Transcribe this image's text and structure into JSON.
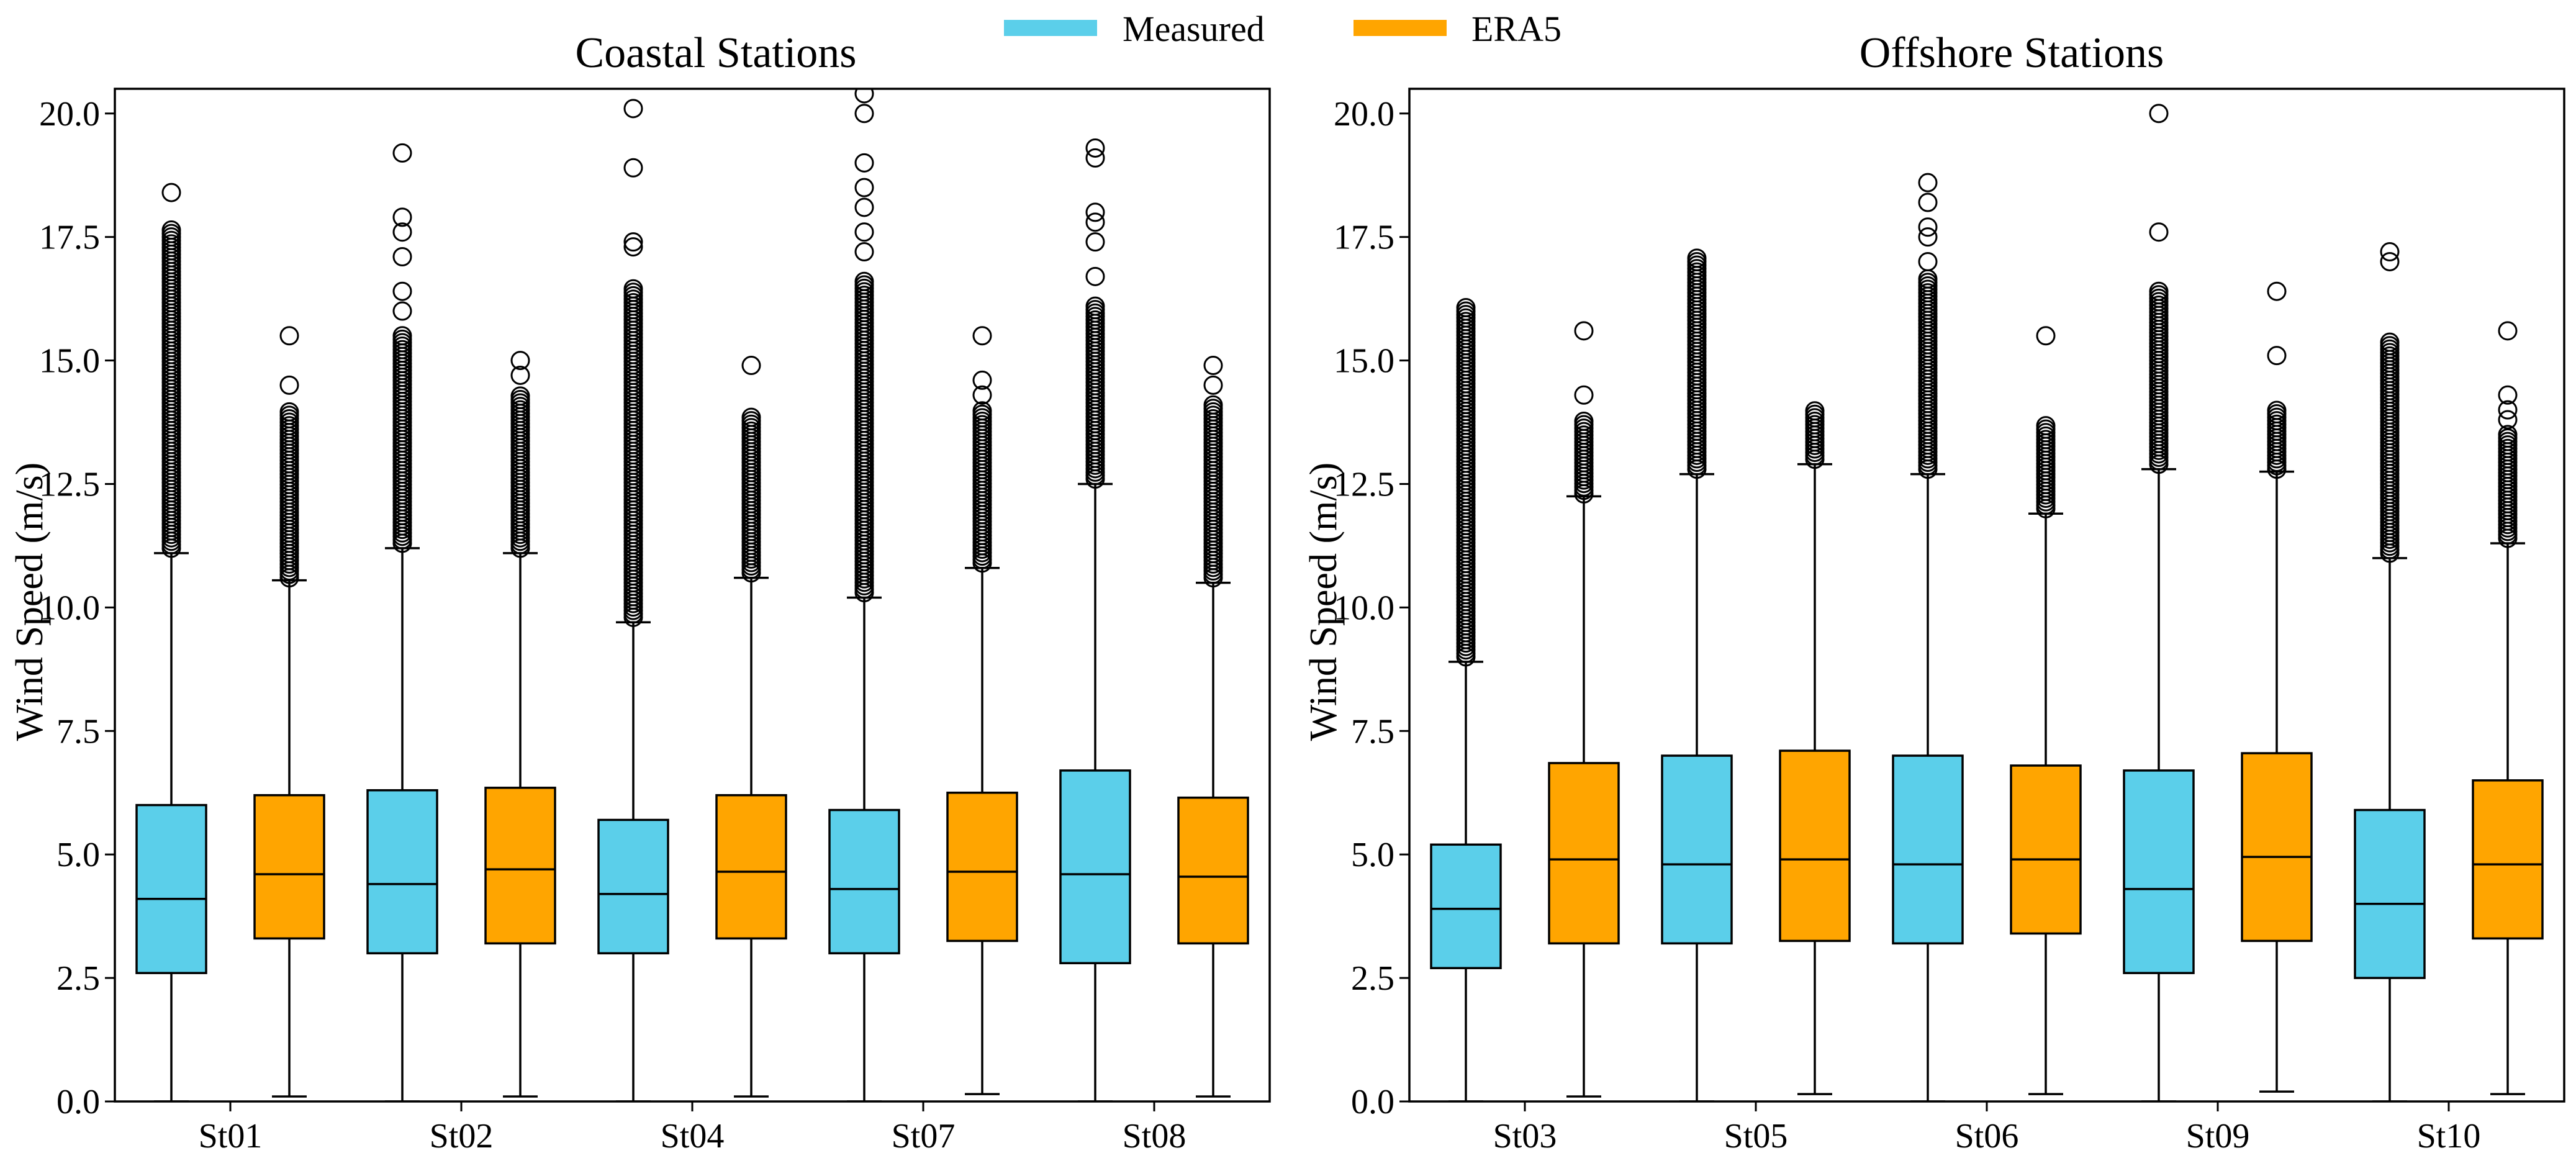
{
  "legend": {
    "items": [
      {
        "label": "Measured",
        "color": "#5BCFEA"
      },
      {
        "label": "ERA5",
        "color": "#FFA500"
      }
    ]
  },
  "chart_data": [
    {
      "type": "boxplot",
      "title": "Coastal Stations",
      "xlabel": "",
      "ylabel": "Wind Speed (m/s)",
      "ylim": [
        0,
        20.5
      ],
      "yticks": [
        "0.0",
        "2.5",
        "5.0",
        "7.5",
        "10.0",
        "12.5",
        "15.0",
        "17.5",
        "20.0"
      ],
      "categories": [
        "St01",
        "St02",
        "St04",
        "St07",
        "St08"
      ],
      "series": [
        {
          "name": "Measured",
          "color": "#5BCFEA",
          "boxes": [
            {
              "whislo": 0.0,
              "q1": 2.6,
              "med": 4.1,
              "q3": 6.0,
              "whishi": 11.1,
              "fliers_from": 11.2,
              "fliers_to": 17.7,
              "outliers": [
                18.4
              ]
            },
            {
              "whislo": 0.0,
              "q1": 3.0,
              "med": 4.4,
              "q3": 6.3,
              "whishi": 11.2,
              "fliers_from": 11.3,
              "fliers_to": 15.5,
              "outliers": [
                16.0,
                16.4,
                17.1,
                17.6,
                17.9,
                19.2
              ]
            },
            {
              "whislo": 0.0,
              "q1": 3.0,
              "med": 4.2,
              "q3": 5.7,
              "whishi": 9.7,
              "fliers_from": 9.8,
              "fliers_to": 16.5,
              "outliers": [
                17.3,
                17.4,
                18.9,
                20.1
              ]
            },
            {
              "whislo": 0.0,
              "q1": 3.0,
              "med": 4.3,
              "q3": 5.9,
              "whishi": 10.2,
              "fliers_from": 10.3,
              "fliers_to": 16.6,
              "outliers": [
                17.2,
                17.6,
                18.1,
                18.5,
                19.0,
                20.0,
                20.4
              ]
            },
            {
              "whislo": 0.0,
              "q1": 2.8,
              "med": 4.6,
              "q3": 6.7,
              "whishi": 12.5,
              "fliers_from": 12.6,
              "fliers_to": 16.1,
              "outliers": [
                16.7,
                17.4,
                17.8,
                18.0,
                19.1,
                19.3
              ]
            }
          ]
        },
        {
          "name": "ERA5",
          "color": "#FFA500",
          "boxes": [
            {
              "whislo": 0.1,
              "q1": 3.3,
              "med": 4.6,
              "q3": 6.2,
              "whishi": 10.55,
              "fliers_from": 10.6,
              "fliers_to": 14.0,
              "outliers": [
                14.5,
                15.5
              ]
            },
            {
              "whislo": 0.1,
              "q1": 3.2,
              "med": 4.7,
              "q3": 6.35,
              "whishi": 11.1,
              "fliers_from": 11.2,
              "fliers_to": 14.3,
              "outliers": [
                14.7,
                15.0
              ]
            },
            {
              "whislo": 0.1,
              "q1": 3.3,
              "med": 4.65,
              "q3": 6.2,
              "whishi": 10.6,
              "fliers_from": 10.7,
              "fliers_to": 13.9,
              "outliers": [
                14.9
              ]
            },
            {
              "whislo": 0.15,
              "q1": 3.25,
              "med": 4.65,
              "q3": 6.25,
              "whishi": 10.8,
              "fliers_from": 10.9,
              "fliers_to": 14.0,
              "outliers": [
                14.3,
                14.6,
                15.5
              ]
            },
            {
              "whislo": 0.1,
              "q1": 3.2,
              "med": 4.55,
              "q3": 6.15,
              "whishi": 10.5,
              "fliers_from": 10.6,
              "fliers_to": 14.1,
              "outliers": [
                14.5,
                14.9
              ]
            }
          ]
        }
      ]
    },
    {
      "type": "boxplot",
      "title": "Offshore Stations",
      "xlabel": "",
      "ylabel": "Wind Speed (m/s)",
      "ylim": [
        0,
        20.5
      ],
      "yticks": [
        "0.0",
        "2.5",
        "5.0",
        "7.5",
        "10.0",
        "12.5",
        "15.0",
        "17.5",
        "20.0"
      ],
      "categories": [
        "St03",
        "St05",
        "St06",
        "St09",
        "St10"
      ],
      "series": [
        {
          "name": "Measured",
          "color": "#5BCFEA",
          "boxes": [
            {
              "whislo": 0.0,
              "q1": 2.7,
              "med": 3.9,
              "q3": 5.2,
              "whishi": 8.9,
              "fliers_from": 9.0,
              "fliers_to": 16.1,
              "outliers": []
            },
            {
              "whislo": 0.0,
              "q1": 3.2,
              "med": 4.8,
              "q3": 7.0,
              "whishi": 12.7,
              "fliers_from": 12.8,
              "fliers_to": 17.1,
              "outliers": []
            },
            {
              "whislo": 0.0,
              "q1": 3.2,
              "med": 4.8,
              "q3": 7.0,
              "whishi": 12.7,
              "fliers_from": 12.8,
              "fliers_to": 16.7,
              "outliers": [
                17.0,
                17.5,
                17.7,
                18.2,
                18.6
              ]
            },
            {
              "whislo": 0.0,
              "q1": 2.6,
              "med": 4.3,
              "q3": 6.7,
              "whishi": 12.8,
              "fliers_from": 12.9,
              "fliers_to": 16.4,
              "outliers": [
                17.6,
                20.0
              ]
            },
            {
              "whislo": 0.0,
              "q1": 2.5,
              "med": 4.0,
              "q3": 5.9,
              "whishi": 11.0,
              "fliers_from": 11.1,
              "fliers_to": 15.4,
              "outliers": [
                17.0,
                17.2
              ]
            }
          ]
        },
        {
          "name": "ERA5",
          "color": "#FFA500",
          "boxes": [
            {
              "whislo": 0.1,
              "q1": 3.2,
              "med": 4.9,
              "q3": 6.85,
              "whishi": 12.25,
              "fliers_from": 12.3,
              "fliers_to": 13.8,
              "outliers": [
                14.3,
                15.6
              ]
            },
            {
              "whislo": 0.15,
              "q1": 3.25,
              "med": 4.9,
              "q3": 7.1,
              "whishi": 12.9,
              "fliers_from": 13.0,
              "fliers_to": 14.0,
              "outliers": []
            },
            {
              "whislo": 0.15,
              "q1": 3.4,
              "med": 4.9,
              "q3": 6.8,
              "whishi": 11.9,
              "fliers_from": 12.0,
              "fliers_to": 13.7,
              "outliers": [
                15.5
              ]
            },
            {
              "whislo": 0.2,
              "q1": 3.25,
              "med": 4.95,
              "q3": 7.05,
              "whishi": 12.75,
              "fliers_from": 12.8,
              "fliers_to": 14.0,
              "outliers": [
                15.1,
                16.4
              ]
            },
            {
              "whislo": 0.15,
              "q1": 3.3,
              "med": 4.8,
              "q3": 6.5,
              "whishi": 11.3,
              "fliers_from": 11.4,
              "fliers_to": 13.5,
              "outliers": [
                13.8,
                14.0,
                14.3,
                15.6
              ]
            }
          ]
        }
      ]
    }
  ]
}
